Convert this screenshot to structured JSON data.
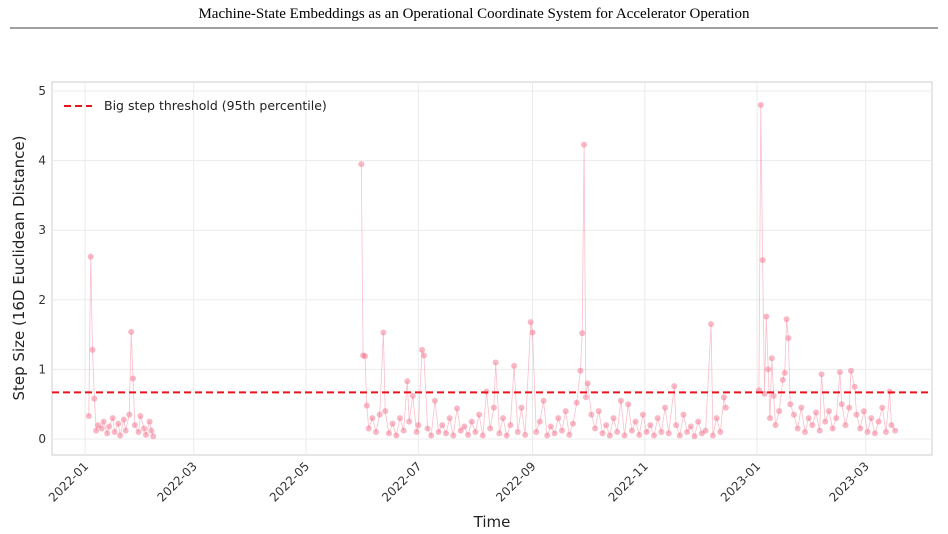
{
  "header": {
    "title": "Machine-State Embeddings as an Operational Coordinate System for Accelerator Operation"
  },
  "chart_data": {
    "type": "scatter-line",
    "xlabel": "Time",
    "ylabel": "Step Size (16D Euclidean Distance)",
    "xlim": [
      "2021-12-14",
      "2023-04-06"
    ],
    "ylim": [
      -0.23,
      5.13
    ],
    "xticks": [
      {
        "value": "2022-01-01",
        "label": "2022-01"
      },
      {
        "value": "2022-03-01",
        "label": "2022-03"
      },
      {
        "value": "2022-05-01",
        "label": "2022-05"
      },
      {
        "value": "2022-07-01",
        "label": "2022-07"
      },
      {
        "value": "2022-09-01",
        "label": "2022-09"
      },
      {
        "value": "2022-11-01",
        "label": "2022-11"
      },
      {
        "value": "2023-01-01",
        "label": "2023-01"
      },
      {
        "value": "2023-03-01",
        "label": "2023-03"
      }
    ],
    "yticks": [
      0,
      1,
      2,
      3,
      4,
      5
    ],
    "grid": true,
    "legend": "upper left",
    "threshold": {
      "name": "Big step threshold (95th percentile)",
      "value": 0.67,
      "color": "#e8141c"
    },
    "series": [
      {
        "color": "#f4728c",
        "x": [
          "2022-01-03",
          "2022-01-04",
          "2022-01-05",
          "2022-01-06",
          "2022-01-07",
          "2022-01-08",
          "2022-01-10",
          "2022-01-11",
          "2022-01-13",
          "2022-01-14",
          "2022-01-16",
          "2022-01-17",
          "2022-01-19",
          "2022-01-20",
          "2022-01-22",
          "2022-01-23",
          "2022-01-25",
          "2022-01-26",
          "2022-01-27",
          "2022-01-28",
          "2022-01-30",
          "2022-01-31",
          "2022-02-02",
          "2022-02-03",
          "2022-02-05",
          "2022-02-06",
          "2022-02-07",
          "2022-04-01",
          "2022-05-31",
          "2022-06-01",
          "2022-06-02",
          "2022-06-03",
          "2022-06-04",
          "2022-06-06",
          "2022-06-08",
          "2022-06-10",
          "2022-06-12",
          "2022-06-13",
          "2022-06-15",
          "2022-06-17",
          "2022-06-19",
          "2022-06-21",
          "2022-06-23",
          "2022-06-25",
          "2022-06-26",
          "2022-06-28",
          "2022-06-30",
          "2022-07-01",
          "2022-07-03",
          "2022-07-04",
          "2022-07-06",
          "2022-07-08",
          "2022-07-10",
          "2022-07-12",
          "2022-07-14",
          "2022-07-16",
          "2022-07-18",
          "2022-07-20",
          "2022-07-22",
          "2022-07-24",
          "2022-07-26",
          "2022-07-28",
          "2022-07-30",
          "2022-08-01",
          "2022-08-03",
          "2022-08-05",
          "2022-08-07",
          "2022-08-09",
          "2022-08-11",
          "2022-08-12",
          "2022-08-14",
          "2022-08-16",
          "2022-08-18",
          "2022-08-20",
          "2022-08-22",
          "2022-08-24",
          "2022-08-26",
          "2022-08-28",
          "2022-08-31",
          "2022-09-01",
          "2022-09-03",
          "2022-09-05",
          "2022-09-07",
          "2022-09-09",
          "2022-09-11",
          "2022-09-13",
          "2022-09-15",
          "2022-09-17",
          "2022-09-19",
          "2022-09-21",
          "2022-09-23",
          "2022-09-25",
          "2022-09-27",
          "2022-09-28",
          "2022-09-29",
          "2022-09-30",
          "2022-10-01",
          "2022-10-03",
          "2022-10-05",
          "2022-10-07",
          "2022-10-09",
          "2022-10-11",
          "2022-10-13",
          "2022-10-15",
          "2022-10-17",
          "2022-10-19",
          "2022-10-21",
          "2022-10-23",
          "2022-10-25",
          "2022-10-27",
          "2022-10-29",
          "2022-10-31",
          "2022-11-02",
          "2022-11-04",
          "2022-11-06",
          "2022-11-08",
          "2022-11-10",
          "2022-11-12",
          "2022-11-14",
          "2022-11-17",
          "2022-11-18",
          "2022-11-20",
          "2022-11-22",
          "2022-11-24",
          "2022-11-26",
          "2022-11-28",
          "2022-11-30",
          "2022-12-02",
          "2022-12-04",
          "2022-12-07",
          "2022-12-08",
          "2022-12-10",
          "2022-12-12",
          "2022-12-14",
          "2022-12-15",
          "2022-12-24",
          "2023-01-02",
          "2023-01-03",
          "2023-01-04",
          "2023-01-05",
          "2023-01-06",
          "2023-01-07",
          "2023-01-08",
          "2023-01-09",
          "2023-01-10",
          "2023-01-11",
          "2023-01-13",
          "2023-01-15",
          "2023-01-16",
          "2023-01-17",
          "2023-01-18",
          "2023-01-19",
          "2023-01-21",
          "2023-01-23",
          "2023-01-25",
          "2023-01-27",
          "2023-01-29",
          "2023-01-31",
          "2023-02-02",
          "2023-02-04",
          "2023-02-05",
          "2023-02-07",
          "2023-02-09",
          "2023-02-11",
          "2023-02-13",
          "2023-02-15",
          "2023-02-16",
          "2023-02-18",
          "2023-02-20",
          "2023-02-21",
          "2023-02-23",
          "2023-02-24",
          "2023-02-26",
          "2023-02-28",
          "2023-03-02",
          "2023-03-04",
          "2023-03-06",
          "2023-03-08",
          "2023-03-10",
          "2023-03-12",
          "2023-03-14",
          "2023-03-15",
          "2023-03-17"
        ],
        "values": [
          0.33,
          2.62,
          1.28,
          0.58,
          0.12,
          0.2,
          0.15,
          0.25,
          0.08,
          0.18,
          0.3,
          0.1,
          0.22,
          0.05,
          0.28,
          0.12,
          0.35,
          1.54,
          0.87,
          0.2,
          0.1,
          0.33,
          0.15,
          0.06,
          0.25,
          0.12,
          0.04,
          null,
          3.95,
          1.2,
          1.19,
          0.48,
          0.15,
          0.3,
          0.1,
          0.35,
          1.53,
          0.4,
          0.08,
          0.22,
          0.05,
          0.3,
          0.12,
          0.83,
          0.25,
          0.62,
          0.1,
          0.2,
          1.28,
          1.2,
          0.15,
          0.05,
          0.55,
          0.1,
          0.2,
          0.08,
          0.3,
          0.05,
          0.44,
          0.12,
          0.18,
          0.06,
          0.25,
          0.1,
          0.35,
          0.05,
          0.68,
          0.15,
          0.45,
          1.1,
          0.08,
          0.3,
          0.05,
          0.2,
          1.05,
          0.1,
          0.45,
          0.06,
          1.68,
          1.53,
          0.1,
          0.25,
          0.55,
          0.05,
          0.18,
          0.08,
          0.3,
          0.12,
          0.4,
          0.06,
          0.22,
          0.52,
          0.98,
          1.52,
          4.23,
          0.6,
          0.8,
          0.35,
          0.15,
          0.4,
          0.08,
          0.2,
          0.05,
          0.3,
          0.1,
          0.55,
          0.05,
          0.5,
          0.12,
          0.25,
          0.06,
          0.35,
          0.1,
          0.2,
          0.05,
          0.3,
          0.1,
          0.45,
          0.08,
          0.76,
          0.2,
          0.05,
          0.35,
          0.1,
          0.18,
          0.04,
          0.25,
          0.08,
          0.12,
          1.65,
          0.05,
          0.3,
          0.1,
          0.6,
          0.45,
          null,
          0.7,
          4.8,
          2.57,
          0.65,
          1.76,
          1.0,
          0.3,
          1.16,
          0.62,
          0.2,
          0.4,
          0.85,
          0.95,
          1.72,
          1.45,
          0.5,
          0.35,
          0.15,
          0.45,
          0.1,
          0.3,
          0.2,
          0.38,
          0.12,
          0.93,
          0.25,
          0.4,
          0.15,
          0.3,
          0.96,
          0.5,
          0.2,
          0.45,
          0.98,
          0.75,
          0.35,
          0.15,
          0.4,
          0.1,
          0.3,
          0.08,
          0.25,
          0.45,
          0.1,
          0.68,
          0.2,
          0.12
        ]
      }
    ]
  }
}
